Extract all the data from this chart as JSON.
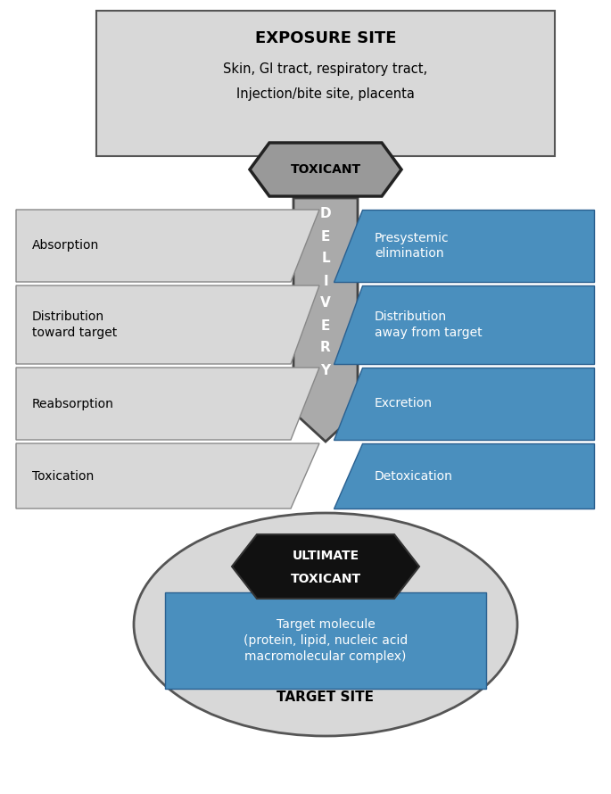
{
  "bg_color": "#ffffff",
  "box_gray": "#d8d8d8",
  "box_edge": "#666666",
  "blue": "#4a8fbe",
  "blue_edge": "#2a6090",
  "black": "#111111",
  "white": "#ffffff",
  "arrow_fill": "#aaaaaa",
  "arrow_edge": "#444444",
  "exposure_title": "EXPOSURE SITE",
  "exposure_sub1": "Skin, GI tract, respiratory tract,",
  "exposure_sub2": "Injection/bite site, placenta",
  "toxicant_label": "TOXICANT",
  "left_labels": [
    "Absorption",
    "Distribution\ntoward target",
    "Reabsorption",
    "Toxication"
  ],
  "right_labels": [
    "Presystemic\nelimination",
    "Distribution\naway from target",
    "Excretion",
    "Detoxication"
  ],
  "delivery_letters": [
    "D",
    "E",
    "L",
    "I",
    "V",
    "E",
    "R",
    "Y"
  ],
  "ultimate_line1": "ULTIMATE",
  "ultimate_line2": "TOXICANT",
  "target_mol": "Target molecule\n(protein, lipid, nucleic acid\nmacromolecular complex)",
  "target_site": "TARGET SITE"
}
